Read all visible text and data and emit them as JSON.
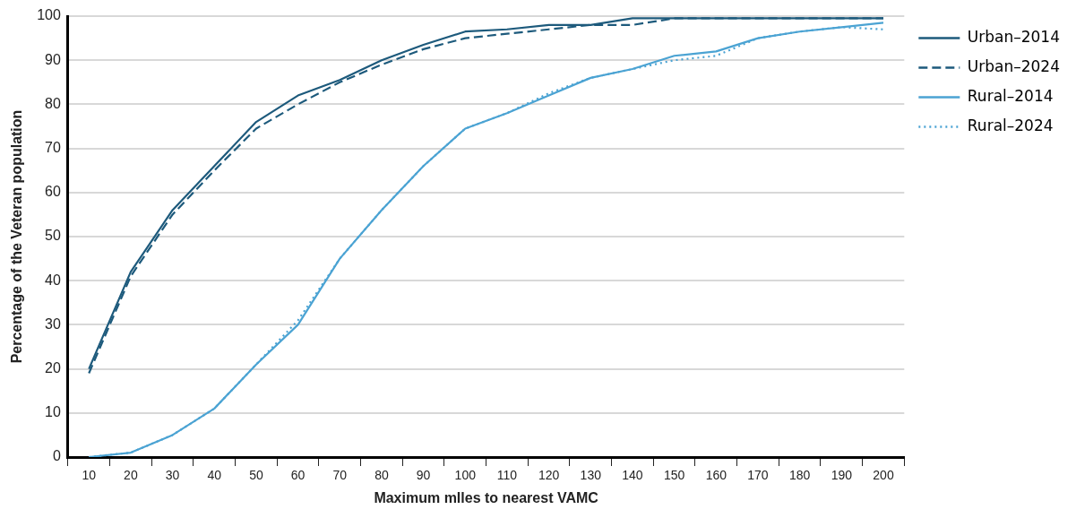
{
  "chart_data": {
    "type": "line",
    "xlabel": "Maximum mlles to nearest VAMC",
    "ylabel": "Percentage of the Veteran population",
    "categories": [
      "10",
      "20",
      "30",
      "40",
      "50",
      "60",
      "70",
      "80",
      "90",
      "100",
      "110",
      "120",
      "130",
      "140",
      "150",
      "160",
      "170",
      "180",
      "190",
      "200"
    ],
    "series": [
      {
        "name": "Urban–2014",
        "color": "#1d5a7c",
        "line_style": "solid",
        "values": [
          20,
          42,
          56,
          66,
          76,
          82,
          85.5,
          90,
          93.5,
          96.5,
          97,
          98,
          98,
          99.5,
          99.5,
          99.5,
          99.5,
          99.5,
          99.5,
          99.5
        ]
      },
      {
        "name": "Urban–2024",
        "color": "#1d5a7c",
        "line_style": "dashed",
        "values": [
          19,
          41,
          55,
          65,
          74.5,
          80,
          85,
          89,
          92.5,
          95,
          96,
          97,
          98,
          98,
          99.5,
          99.5,
          99.5,
          99.5,
          99.5,
          99.5
        ]
      },
      {
        "name": "Rural–2014",
        "color": "#4ba3d3",
        "line_style": "solid",
        "values": [
          0,
          1,
          5,
          11,
          21,
          30,
          45,
          56,
          66,
          74.5,
          78,
          82,
          86,
          88,
          91,
          92,
          95,
          96.5,
          97.5,
          98.5
        ]
      },
      {
        "name": "Rural–2024",
        "color": "#4ba3d3",
        "line_style": "dotted",
        "values": [
          0,
          1,
          5,
          11,
          21,
          31,
          45,
          56,
          66,
          74.5,
          78,
          82.5,
          86,
          88,
          90,
          91,
          95,
          96.5,
          97.5,
          97
        ]
      }
    ],
    "ylim": [
      0,
      100
    ],
    "yticks": [
      0,
      10,
      20,
      30,
      40,
      50,
      60,
      70,
      80,
      90,
      100
    ],
    "grid": "y",
    "legend": "right",
    "marker": "none"
  }
}
